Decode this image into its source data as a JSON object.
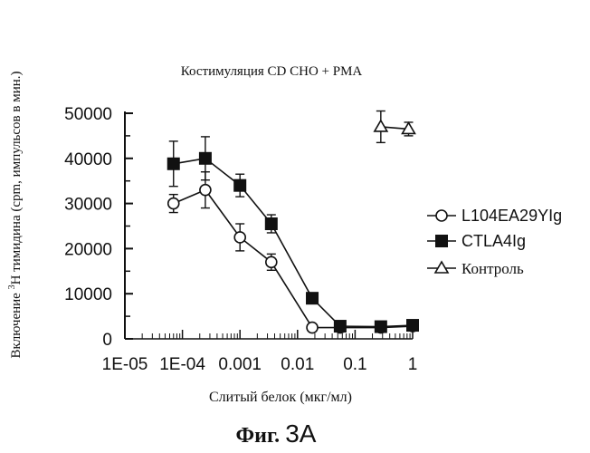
{
  "chart_data": {
    "type": "scatter",
    "title": "Костимуляция CD CHO + PMA",
    "xlabel": "Слитый белок (мкг/мл)",
    "ylabel_prefix": "Включение ",
    "ylabel_sup": "3",
    "ylabel_suffix": "H тимидина (cpm, импульсов в мин.)",
    "x_scale": "log",
    "xlim": [
      1e-05,
      1
    ],
    "ylim": [
      0,
      50000
    ],
    "x_ticks": [
      "1E-05",
      "1E-04",
      "0.001",
      "0.01",
      "0.1",
      "1"
    ],
    "y_ticks": [
      "0",
      "10000",
      "20000",
      "30000",
      "40000",
      "50000"
    ],
    "legend_position": "right",
    "series": [
      {
        "name": "L104EA29YIg",
        "marker": "circle-open",
        "connected": true,
        "x": [
          7e-05,
          0.00025,
          0.001,
          0.0035,
          0.018,
          0.055,
          0.28,
          1.0
        ],
        "y": [
          30000,
          33000,
          22500,
          17000,
          2500,
          2500,
          2500,
          2800
        ],
        "err": [
          2000,
          4000,
          3000,
          1800,
          600,
          500,
          500,
          500
        ]
      },
      {
        "name": "CTLA4Ig",
        "marker": "square-filled",
        "connected": true,
        "x": [
          7e-05,
          0.00025,
          0.001,
          0.0035,
          0.018,
          0.055,
          0.28,
          1.0
        ],
        "y": [
          38800,
          40000,
          34000,
          25500,
          9000,
          2800,
          2700,
          3000
        ],
        "err": [
          5000,
          4800,
          2500,
          2000,
          600,
          500,
          400,
          500
        ]
      },
      {
        "name": "Контроль",
        "marker": "triangle-open",
        "connected": true,
        "x": [
          0.28,
          0.85
        ],
        "y": [
          47000,
          46500
        ],
        "err": [
          3500,
          1500
        ]
      }
    ]
  },
  "figure_caption_main": "Фиг.",
  "figure_caption_number": "3A"
}
